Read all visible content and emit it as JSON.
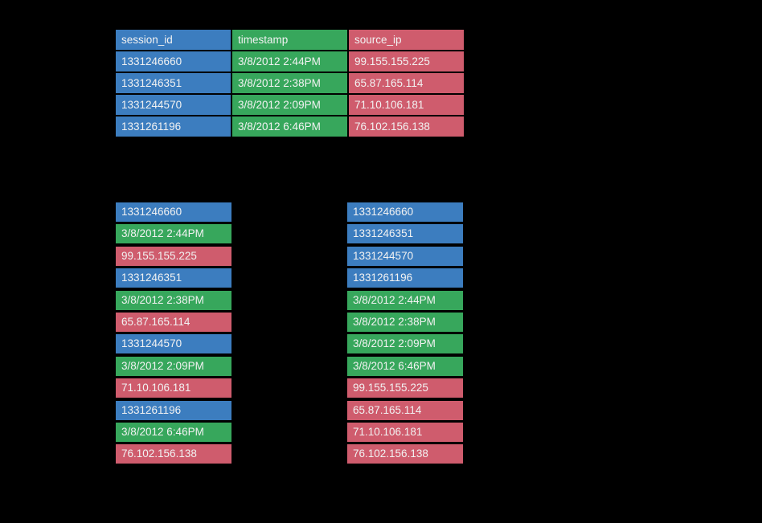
{
  "colors": {
    "background": "#000000",
    "session_id": "#3C7DBF",
    "timestamp": "#37A75C",
    "source_ip": "#CF5C6D",
    "text": "#F2F2F2"
  },
  "table": {
    "columns": [
      {
        "label": "session_id",
        "color": "#3C7DBF"
      },
      {
        "label": "timestamp",
        "color": "#37A75C"
      },
      {
        "label": "source_ip",
        "color": "#CF5C6D"
      }
    ],
    "rows": [
      [
        "1331246660",
        "3/8/2012 2:44PM",
        "99.155.155.225"
      ],
      [
        "1331246351",
        "3/8/2012 2:38PM",
        "65.87.165.114"
      ],
      [
        "1331244570",
        "3/8/2012 2:09PM",
        "71.10.106.181"
      ],
      [
        "1331261196",
        "3/8/2012 6:46PM",
        "76.102.156.138"
      ]
    ]
  },
  "row_major_list": {
    "items": [
      {
        "text": "1331246660",
        "field": "session_id"
      },
      {
        "text": "3/8/2012 2:44PM",
        "field": "timestamp"
      },
      {
        "text": "99.155.155.225",
        "field": "source_ip"
      },
      {
        "text": "1331246351",
        "field": "session_id"
      },
      {
        "text": "3/8/2012 2:38PM",
        "field": "timestamp"
      },
      {
        "text": "65.87.165.114",
        "field": "source_ip"
      },
      {
        "text": "1331244570",
        "field": "session_id"
      },
      {
        "text": "3/8/2012 2:09PM",
        "field": "timestamp"
      },
      {
        "text": "71.10.106.181",
        "field": "source_ip"
      },
      {
        "text": "1331261196",
        "field": "session_id"
      },
      {
        "text": "3/8/2012 6:46PM",
        "field": "timestamp"
      },
      {
        "text": "76.102.156.138",
        "field": "source_ip"
      }
    ]
  },
  "column_major_list": {
    "items": [
      {
        "text": "1331246660",
        "field": "session_id"
      },
      {
        "text": "1331246351",
        "field": "session_id"
      },
      {
        "text": "1331244570",
        "field": "session_id"
      },
      {
        "text": "1331261196",
        "field": "session_id"
      },
      {
        "text": "3/8/2012 2:44PM",
        "field": "timestamp"
      },
      {
        "text": "3/8/2012 2:38PM",
        "field": "timestamp"
      },
      {
        "text": "3/8/2012 2:09PM",
        "field": "timestamp"
      },
      {
        "text": "3/8/2012 6:46PM",
        "field": "timestamp"
      },
      {
        "text": "99.155.155.225",
        "field": "source_ip"
      },
      {
        "text": "65.87.165.114",
        "field": "source_ip"
      },
      {
        "text": "71.10.106.181",
        "field": "source_ip"
      },
      {
        "text": "76.102.156.138",
        "field": "source_ip"
      }
    ]
  }
}
